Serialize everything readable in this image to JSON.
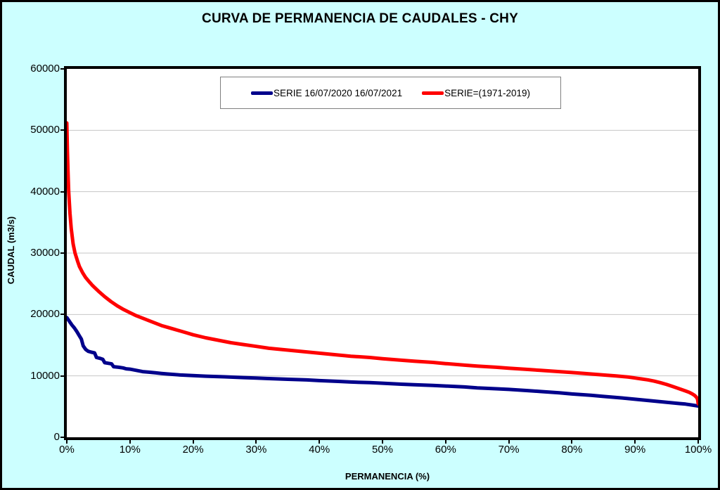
{
  "window": {
    "background_color": "#CCFFFF",
    "outer_border_color": "#000000"
  },
  "chart_data": {
    "type": "line",
    "title": "CURVA DE PERMANENCIA DE CAUDALES - CHY",
    "xlabel": "PERMANENCIA (%)",
    "ylabel": "CAUDAL (m3/s)",
    "xlim": [
      0,
      100
    ],
    "ylim": [
      0,
      60000
    ],
    "xtick_labels": [
      "0%",
      "10%",
      "20%",
      "30%",
      "40%",
      "50%",
      "60%",
      "70%",
      "80%",
      "90%",
      "100%"
    ],
    "xtick_values": [
      0,
      10,
      20,
      30,
      40,
      50,
      60,
      70,
      80,
      90,
      100
    ],
    "ytick_values": [
      0,
      10000,
      20000,
      30000,
      40000,
      50000,
      60000
    ],
    "grid": "horizontal",
    "gridline_color": "#C6C6C6",
    "plot_background": "#FFFFFF",
    "legend_position": "top-center-inside",
    "series": [
      {
        "name": "SERIE 16/07/2020 16/07/2021",
        "color": "#00008B",
        "points": [
          [
            0,
            19500
          ],
          [
            0.4,
            18900
          ],
          [
            0.8,
            18300
          ],
          [
            1.2,
            17800
          ],
          [
            1.6,
            17200
          ],
          [
            2,
            16500
          ],
          [
            2.3,
            16000
          ],
          [
            2.6,
            14900
          ],
          [
            3,
            14300
          ],
          [
            3.4,
            14000
          ],
          [
            3.9,
            13850
          ],
          [
            4.4,
            13750
          ],
          [
            4.7,
            13000
          ],
          [
            5.3,
            12850
          ],
          [
            5.7,
            12700
          ],
          [
            6,
            12150
          ],
          [
            6.6,
            12050
          ],
          [
            7.1,
            11950
          ],
          [
            7.4,
            11500
          ],
          [
            8.2,
            11400
          ],
          [
            8.9,
            11300
          ],
          [
            9.4,
            11150
          ],
          [
            10,
            11100
          ],
          [
            11,
            10900
          ],
          [
            12,
            10700
          ],
          [
            13,
            10600
          ],
          [
            14,
            10500
          ],
          [
            15,
            10400
          ],
          [
            16,
            10300
          ],
          [
            18,
            10150
          ],
          [
            20,
            10050
          ],
          [
            22,
            9950
          ],
          [
            25,
            9850
          ],
          [
            28,
            9720
          ],
          [
            30,
            9650
          ],
          [
            32,
            9560
          ],
          [
            35,
            9450
          ],
          [
            38,
            9340
          ],
          [
            40,
            9230
          ],
          [
            43,
            9100
          ],
          [
            45,
            9000
          ],
          [
            48,
            8900
          ],
          [
            50,
            8800
          ],
          [
            53,
            8650
          ],
          [
            55,
            8550
          ],
          [
            58,
            8450
          ],
          [
            60,
            8350
          ],
          [
            63,
            8200
          ],
          [
            65,
            8050
          ],
          [
            68,
            7900
          ],
          [
            70,
            7800
          ],
          [
            73,
            7600
          ],
          [
            75,
            7450
          ],
          [
            78,
            7250
          ],
          [
            80,
            7050
          ],
          [
            83,
            6850
          ],
          [
            85,
            6650
          ],
          [
            88,
            6400
          ],
          [
            90,
            6200
          ],
          [
            92,
            6000
          ],
          [
            95,
            5700
          ],
          [
            97,
            5500
          ],
          [
            98,
            5400
          ],
          [
            99,
            5250
          ],
          [
            100,
            5100
          ]
        ]
      },
      {
        "name": "SERIE=(1971-2019)",
        "color": "#FF0000",
        "points": [
          [
            0,
            51200
          ],
          [
            0.1,
            46500
          ],
          [
            0.2,
            43000
          ],
          [
            0.3,
            40000
          ],
          [
            0.5,
            36500
          ],
          [
            0.7,
            34000
          ],
          [
            1,
            31500
          ],
          [
            1.3,
            30000
          ],
          [
            1.7,
            28700
          ],
          [
            2,
            27800
          ],
          [
            2.5,
            26800
          ],
          [
            3,
            26000
          ],
          [
            3.5,
            25400
          ],
          [
            4,
            24800
          ],
          [
            4.5,
            24300
          ],
          [
            5,
            23800
          ],
          [
            6,
            22900
          ],
          [
            7,
            22100
          ],
          [
            8,
            21400
          ],
          [
            9,
            20800
          ],
          [
            10,
            20300
          ],
          [
            11,
            19800
          ],
          [
            12,
            19400
          ],
          [
            13,
            19000
          ],
          [
            14,
            18600
          ],
          [
            15,
            18200
          ],
          [
            16,
            17900
          ],
          [
            17,
            17600
          ],
          [
            18,
            17300
          ],
          [
            19,
            17000
          ],
          [
            20,
            16700
          ],
          [
            22,
            16200
          ],
          [
            24,
            15800
          ],
          [
            26,
            15400
          ],
          [
            28,
            15100
          ],
          [
            30,
            14800
          ],
          [
            32,
            14500
          ],
          [
            35,
            14200
          ],
          [
            38,
            13900
          ],
          [
            40,
            13700
          ],
          [
            43,
            13400
          ],
          [
            45,
            13200
          ],
          [
            48,
            13000
          ],
          [
            50,
            12800
          ],
          [
            53,
            12550
          ],
          [
            55,
            12400
          ],
          [
            58,
            12200
          ],
          [
            60,
            12000
          ],
          [
            63,
            11750
          ],
          [
            65,
            11600
          ],
          [
            68,
            11400
          ],
          [
            70,
            11250
          ],
          [
            73,
            11050
          ],
          [
            75,
            10900
          ],
          [
            78,
            10700
          ],
          [
            80,
            10550
          ],
          [
            82,
            10400
          ],
          [
            85,
            10150
          ],
          [
            87,
            10000
          ],
          [
            89,
            9800
          ],
          [
            90,
            9650
          ],
          [
            91,
            9500
          ],
          [
            92,
            9350
          ],
          [
            93,
            9150
          ],
          [
            94,
            8900
          ],
          [
            95,
            8600
          ],
          [
            96,
            8250
          ],
          [
            97,
            7900
          ],
          [
            98,
            7550
          ],
          [
            98.5,
            7350
          ],
          [
            99,
            7100
          ],
          [
            99.4,
            6850
          ],
          [
            99.7,
            6550
          ],
          [
            99.9,
            6200
          ],
          [
            100,
            5450
          ]
        ]
      }
    ]
  }
}
